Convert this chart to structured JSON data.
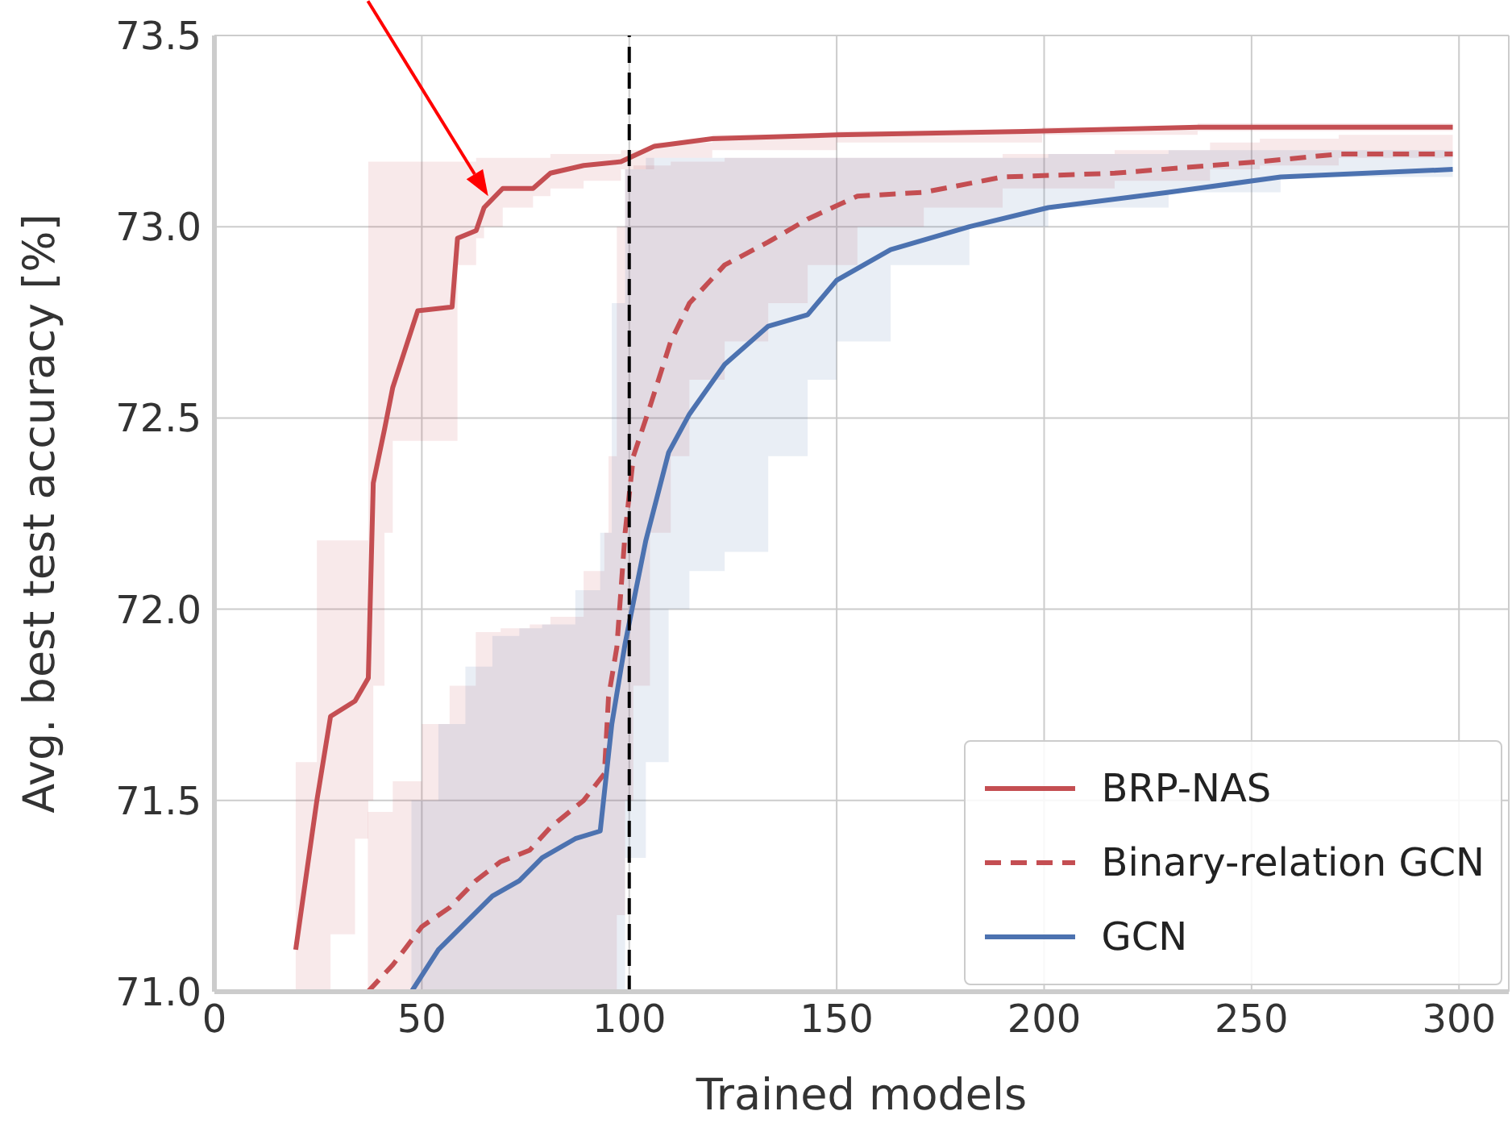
{
  "chart_data": {
    "type": "line",
    "xlabel": "Trained models",
    "ylabel": "Avg. best test accuracy [%]",
    "xlim": [
      0,
      312
    ],
    "ylim": [
      71,
      73.5
    ],
    "xticks": [
      0,
      50,
      100,
      150,
      200,
      250,
      300
    ],
    "yticks": [
      {
        "value": 71,
        "label": "71.0"
      },
      71.5,
      {
        "value": 72,
        "label": "72.0"
      },
      72.5,
      {
        "value": 73,
        "label": "73.0"
      },
      73.5
    ],
    "grid": true,
    "legend": "bottom right",
    "marker": "none",
    "ref_lines": [
      {
        "axis": "x",
        "value": 100,
        "color": "#000000",
        "line_style": "dashed"
      }
    ],
    "series": [
      {
        "name": "BRP-NAS",
        "color": "#c44e52",
        "line_style": "solid",
        "x": [
          19.6,
          24.7,
          28,
          33.9,
          37.1,
          38.3,
          41,
          43,
          49,
          57.3,
          58.6,
          63.1,
          65,
          69.5,
          76.8,
          81,
          89,
          98,
          106,
          120,
          150,
          199.5,
          237,
          298.5
        ],
        "values": [
          71.11,
          71.5,
          71.72,
          71.76,
          71.82,
          72.33,
          72.47,
          72.58,
          72.78,
          72.79,
          72.97,
          72.99,
          73.05,
          73.1,
          73.1,
          73.14,
          73.16,
          73.17,
          73.21,
          73.23,
          73.24,
          73.25,
          73.26,
          73.26
        ],
        "lower": [
          71.0,
          71.0,
          71.15,
          71.4,
          71.5,
          71.8,
          72.2,
          72.44,
          72.44,
          72.44,
          72.9,
          72.97,
          73.0,
          73.05,
          73.08,
          73.1,
          73.12,
          73.15,
          73.18,
          73.2,
          73.22,
          73.24,
          73.25,
          73.25
        ],
        "upper": [
          71.6,
          72.18,
          72.18,
          72.18,
          73.17,
          73.17,
          73.17,
          73.17,
          73.17,
          73.17,
          73.17,
          73.18,
          73.18,
          73.18,
          73.18,
          73.19,
          73.19,
          73.2,
          73.22,
          73.24,
          73.25,
          73.26,
          73.27,
          73.27
        ]
      },
      {
        "name": "Binary-relation GCN",
        "color": "#c44e52",
        "line_style": "dashed",
        "x": [
          37,
          43,
          50,
          56.7,
          63,
          69,
          76,
          81,
          89,
          94,
          95,
          97,
          99,
          101,
          105,
          110,
          114.5,
          123,
          133.5,
          143,
          155,
          171,
          190,
          217,
          240,
          252,
          271,
          298.5
        ],
        "values": [
          71.0,
          71.07,
          71.17,
          71.22,
          71.29,
          71.34,
          71.37,
          71.43,
          71.5,
          71.57,
          71.77,
          71.9,
          72.2,
          72.4,
          72.53,
          72.7,
          72.8,
          72.9,
          72.96,
          73.02,
          73.08,
          73.09,
          73.13,
          73.14,
          73.16,
          73.17,
          73.19,
          73.19
        ],
        "lower": [
          71.0,
          71.0,
          71.0,
          71.0,
          71.0,
          71.0,
          71.0,
          71.0,
          71.0,
          71.0,
          71.0,
          71.2,
          71.5,
          71.8,
          72.2,
          72.4,
          72.6,
          72.7,
          72.8,
          72.9,
          73.0,
          73.05,
          73.1,
          73.12,
          73.15,
          73.16,
          73.18,
          73.18
        ],
        "upper": [
          71.47,
          71.55,
          71.7,
          71.8,
          71.94,
          71.95,
          71.96,
          71.98,
          72.1,
          72.2,
          72.4,
          73.0,
          73.15,
          73.16,
          73.16,
          73.17,
          73.17,
          73.18,
          73.18,
          73.18,
          73.18,
          73.18,
          73.19,
          73.2,
          73.22,
          73.23,
          73.24,
          73.24
        ]
      },
      {
        "name": "GCN",
        "color": "#4c72b0",
        "line_style": "solid",
        "x": [
          47.5,
          54,
          60.5,
          67,
          73.5,
          79,
          87,
          93,
          95.8,
          99,
          104,
          109.5,
          114.5,
          123,
          133.5,
          143,
          150,
          163,
          182,
          201,
          230,
          257,
          298.5
        ],
        "values": [
          71.0,
          71.11,
          71.18,
          71.25,
          71.29,
          71.35,
          71.4,
          71.42,
          71.7,
          71.91,
          72.18,
          72.41,
          72.51,
          72.64,
          72.74,
          72.77,
          72.86,
          72.94,
          73.0,
          73.05,
          73.09,
          73.13,
          73.15
        ],
        "lower": [
          71.0,
          71.0,
          71.0,
          71.0,
          71.0,
          71.0,
          71.0,
          71.0,
          71.0,
          71.35,
          71.6,
          72.0,
          72.1,
          72.15,
          72.4,
          72.6,
          72.7,
          72.9,
          73.0,
          73.05,
          73.09,
          73.13,
          73.15
        ],
        "upper": [
          71.5,
          71.7,
          71.85,
          71.93,
          71.95,
          71.96,
          72.05,
          72.2,
          72.8,
          73.15,
          73.18,
          73.18,
          73.18,
          73.18,
          73.18,
          73.18,
          73.18,
          73.18,
          73.18,
          73.19,
          73.2,
          73.2,
          73.2
        ]
      }
    ]
  }
}
